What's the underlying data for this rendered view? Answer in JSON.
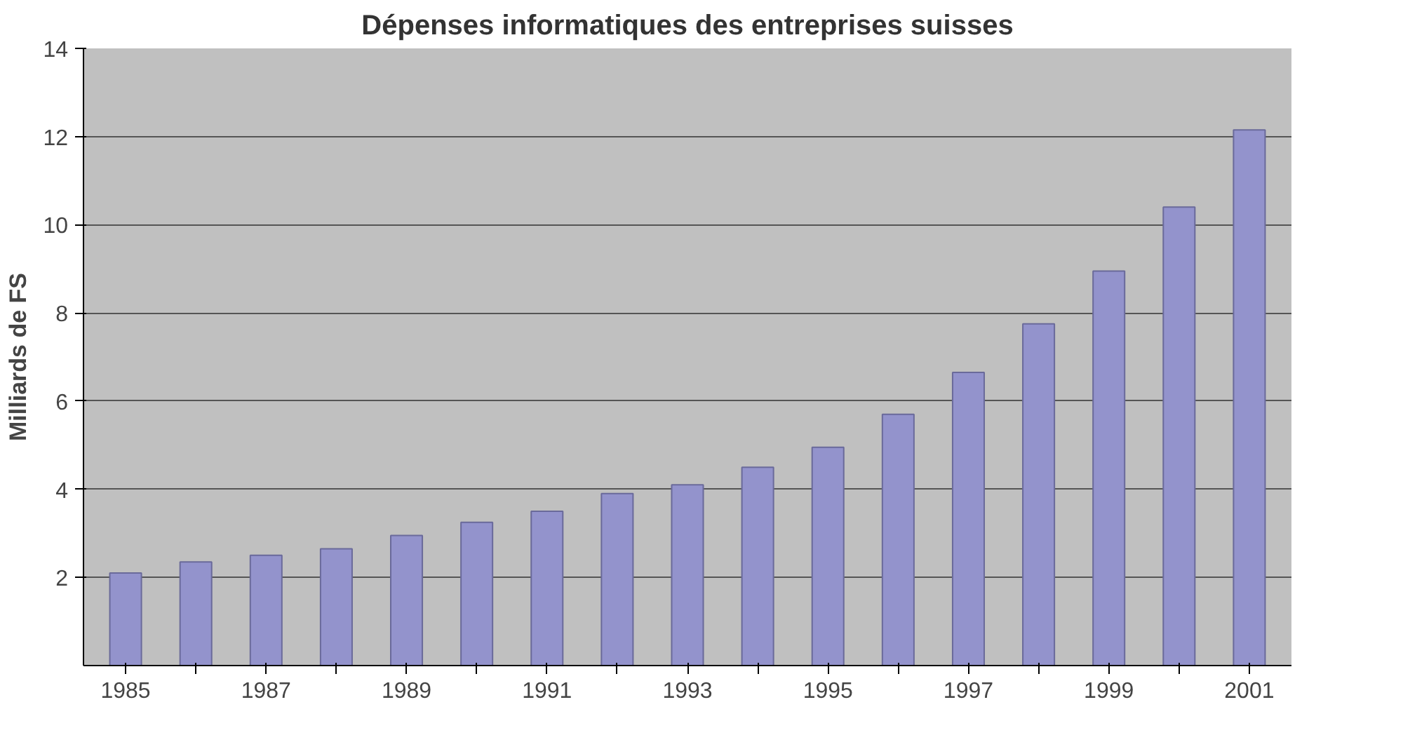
{
  "chart_data": {
    "type": "bar",
    "title": "Dépenses informatiques des entreprises suisses",
    "ylabel": "Milliards de FS",
    "categories": [
      "1985",
      null,
      "1987",
      null,
      "1989",
      null,
      "1991",
      null,
      "1993",
      null,
      "1995",
      null,
      "1997",
      null,
      "1999",
      null,
      "2001"
    ],
    "values": [
      2.1,
      2.35,
      2.5,
      2.65,
      2.95,
      3.25,
      3.5,
      3.9,
      4.1,
      4.5,
      4.95,
      5.7,
      6.65,
      7.75,
      8.95,
      10.4,
      12.15
    ],
    "color": "#9393cc",
    "ylim": [
      0,
      14
    ],
    "yticks": [
      2,
      4,
      6,
      8,
      10,
      12,
      14
    ],
    "grid": "y"
  }
}
